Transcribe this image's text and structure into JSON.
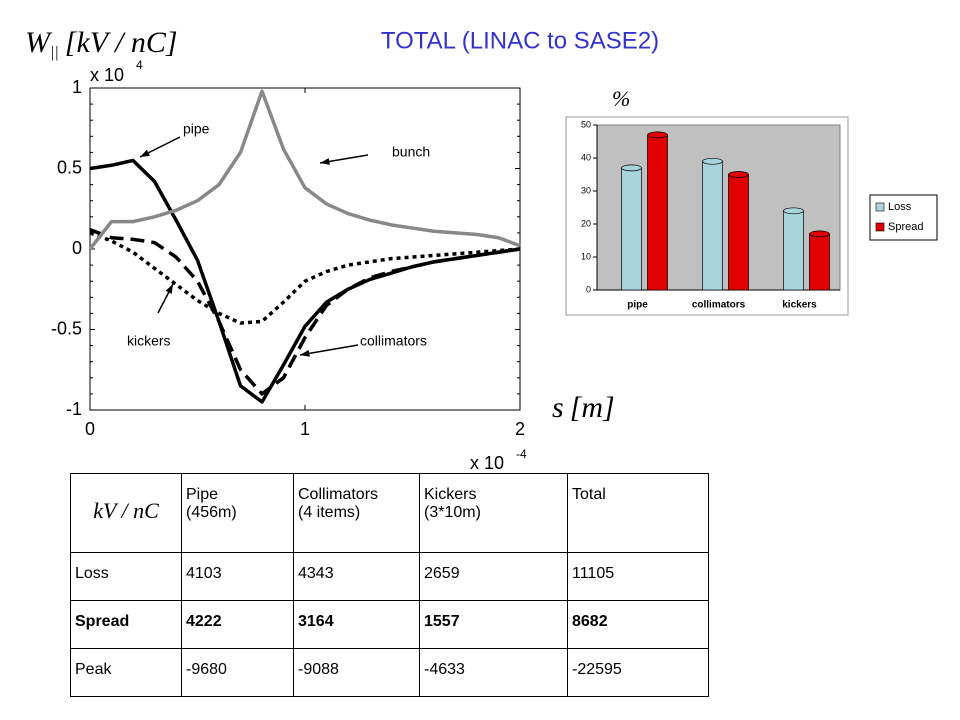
{
  "title": "TOTAL (LINAC to SASE2)",
  "chart_data": [
    {
      "type": "line",
      "ylabel": {
        "symbol": "W",
        "subscript": "||",
        "unit": "[kV / nC]"
      },
      "xlabel": {
        "symbol": "s",
        "unit": "[m]"
      },
      "y_multiplier": {
        "base": "x 10",
        "exponent": "4"
      },
      "x_multiplier": {
        "base": "x 10",
        "exponent": "-4"
      },
      "x": [
        0,
        0.1,
        0.2,
        0.3,
        0.4,
        0.5,
        0.6,
        0.7,
        0.8,
        0.9,
        1.0,
        1.1,
        1.2,
        1.3,
        1.4,
        1.5,
        1.6,
        1.7,
        1.8,
        1.9,
        2.0
      ],
      "series": [
        {
          "name": "pipe",
          "color": "#000000",
          "style": "solid",
          "values": [
            0.5,
            0.52,
            0.55,
            0.42,
            0.18,
            -0.07,
            -0.45,
            -0.85,
            -0.95,
            -0.72,
            -0.48,
            -0.33,
            -0.25,
            -0.19,
            -0.15,
            -0.11,
            -0.08,
            -0.06,
            -0.04,
            -0.02,
            0
          ]
        },
        {
          "name": "collimators",
          "color": "#000000",
          "style": "dashed",
          "values": [
            0.12,
            0.07,
            0.06,
            0.04,
            -0.05,
            -0.2,
            -0.45,
            -0.75,
            -0.9,
            -0.8,
            -0.55,
            -0.35,
            -0.25,
            -0.18,
            -0.14,
            -0.11,
            -0.08,
            -0.06,
            -0.04,
            -0.02,
            0
          ]
        },
        {
          "name": "kickers",
          "color": "#000000",
          "style": "dotted",
          "values": [
            0.1,
            0.05,
            -0.02,
            -0.12,
            -0.22,
            -0.32,
            -0.4,
            -0.46,
            -0.45,
            -0.33,
            -0.2,
            -0.14,
            -0.1,
            -0.08,
            -0.06,
            -0.05,
            -0.04,
            -0.03,
            -0.02,
            -0.01,
            0
          ]
        },
        {
          "name": "bunch",
          "color": "#888888",
          "style": "solid",
          "values": [
            0,
            0.17,
            0.17,
            0.2,
            0.24,
            0.3,
            0.4,
            0.6,
            0.98,
            0.62,
            0.38,
            0.28,
            0.22,
            0.18,
            0.15,
            0.13,
            0.11,
            0.1,
            0.09,
            0.07,
            0.02
          ]
        }
      ],
      "xlim": [
        0,
        2
      ],
      "xticks": [
        0,
        1,
        2
      ],
      "ylim": [
        -1,
        1
      ],
      "yticks": [
        -1,
        -0.5,
        0,
        0.5,
        1
      ]
    },
    {
      "type": "bar",
      "ylabel": "%",
      "categories": [
        "pipe",
        "collimators",
        "kickers"
      ],
      "series": [
        {
          "name": "Loss",
          "color": "#a8d4dc",
          "values": [
            37,
            39,
            24
          ]
        },
        {
          "name": "Spread",
          "color": "#e00000",
          "values": [
            47,
            35,
            17
          ]
        }
      ],
      "ylim": [
        0,
        50
      ],
      "yticks": [
        0,
        10,
        20,
        30,
        40,
        50
      ],
      "legend": "right"
    }
  ],
  "table": {
    "header": [
      [
        "kV / nC"
      ],
      [
        "Pipe",
        "(456m)"
      ],
      [
        "Collimators",
        "(4 items)"
      ],
      [
        "Kickers",
        "(3*10m)"
      ],
      [
        "Total"
      ]
    ],
    "rows": [
      [
        "Loss",
        4103,
        4343,
        2659,
        11105
      ],
      [
        "Spread",
        4222,
        3164,
        1557,
        8682
      ],
      [
        "Peak",
        -9680,
        -9088,
        -4633,
        -22595
      ]
    ]
  }
}
